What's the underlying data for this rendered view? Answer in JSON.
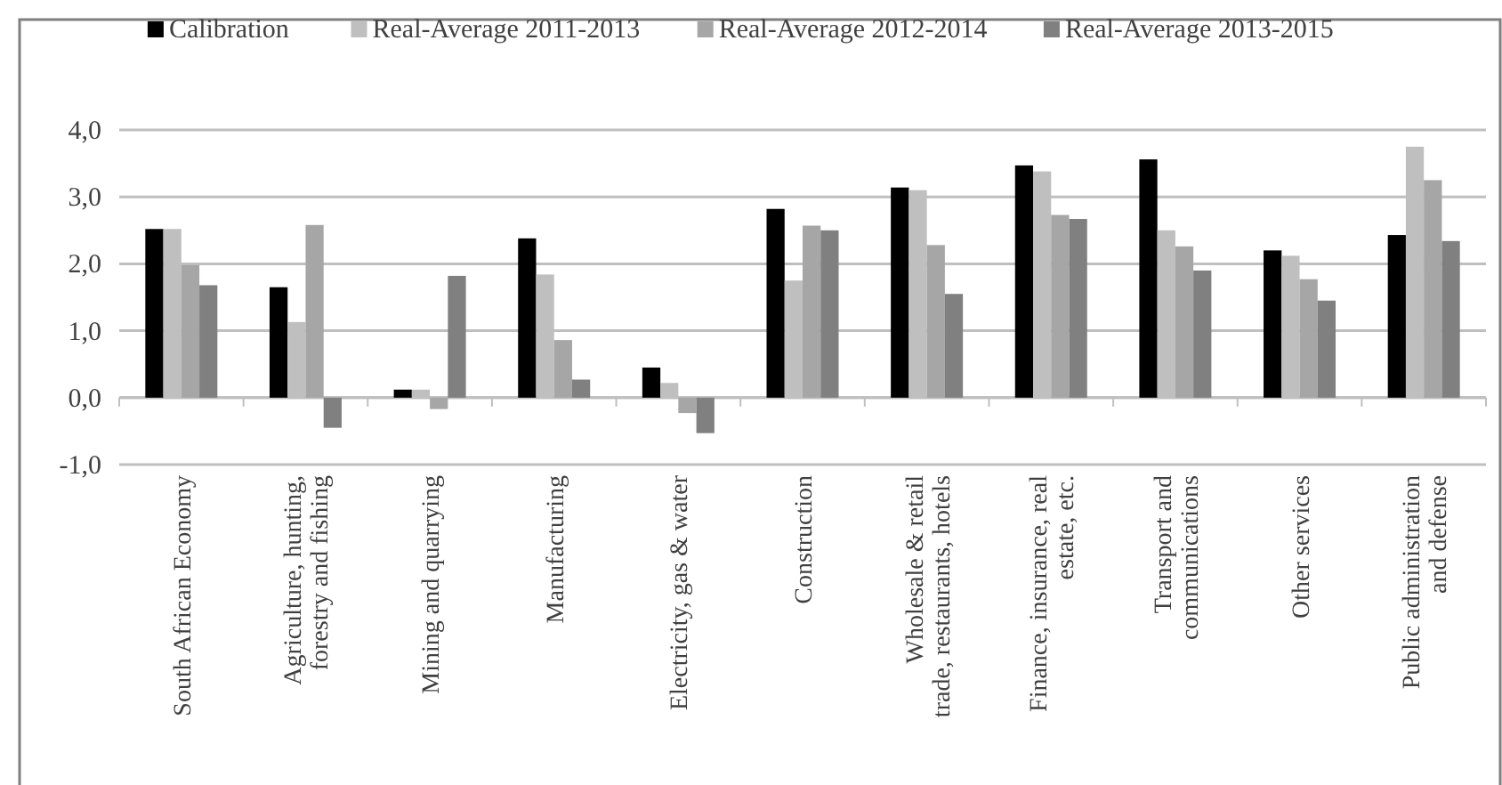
{
  "chart_data": {
    "type": "bar",
    "categories": [
      "South African Economy",
      "Agriculture, hunting,\nforestry and fishing",
      "Mining and quarrying",
      "Manufacturing",
      "Electricity, gas & water",
      "Construction",
      "Wholesale & retail\ntrade, restaurants, hotels",
      "Finance, insurance, real\nestate, etc.",
      "Transport and\ncommunications",
      "Other services",
      "Public administration\nand defense"
    ],
    "series": [
      {
        "name": "Calibration",
        "color": "#000000",
        "values": [
          2.52,
          1.65,
          0.12,
          2.38,
          0.45,
          2.82,
          3.14,
          3.47,
          3.56,
          2.2,
          2.43
        ]
      },
      {
        "name": "Real-Average 2011-2013",
        "color": "#bfbfbf",
        "values": [
          2.52,
          1.13,
          0.12,
          1.84,
          0.22,
          1.75,
          3.1,
          3.38,
          2.5,
          2.12,
          3.75
        ]
      },
      {
        "name": "Real-Average 2012-2014",
        "color": "#a6a6a6",
        "values": [
          1.98,
          2.58,
          -0.17,
          0.86,
          -0.23,
          2.57,
          2.28,
          2.73,
          2.26,
          1.77,
          3.25
        ]
      },
      {
        "name": "Real-Average 2013-2015",
        "color": "#808080",
        "values": [
          1.68,
          -0.45,
          1.82,
          0.27,
          -0.53,
          2.5,
          1.55,
          2.67,
          1.9,
          1.45,
          2.34
        ]
      }
    ],
    "ylim": [
      -1,
      4
    ],
    "yticks": [
      {
        "value": -1,
        "label": "-1,0"
      },
      {
        "value": 0,
        "label": "0,0"
      },
      {
        "value": 1,
        "label": "1,0"
      },
      {
        "value": 2,
        "label": "2,0"
      },
      {
        "value": 3,
        "label": "3,0"
      },
      {
        "value": 4,
        "label": "4,0"
      }
    ],
    "grid": "y",
    "legend": "top"
  }
}
